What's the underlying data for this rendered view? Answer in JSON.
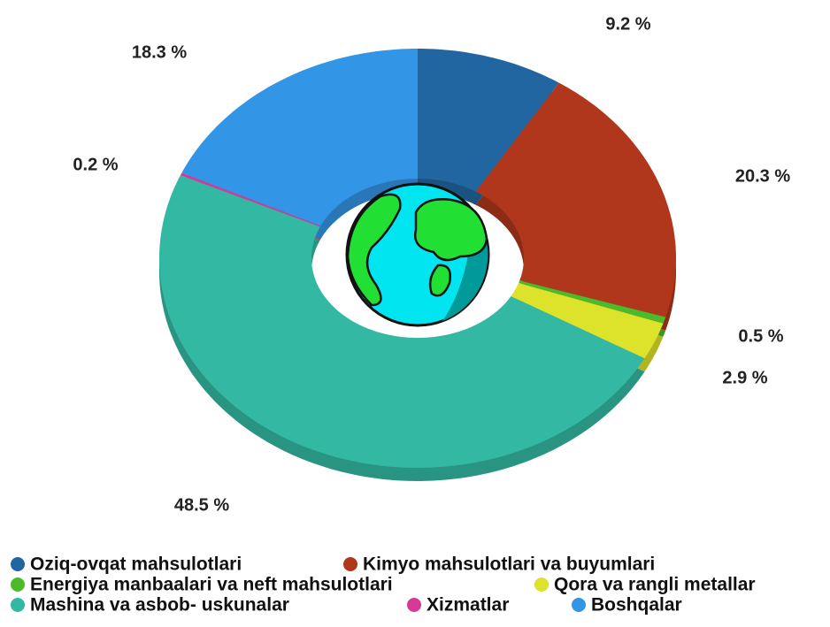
{
  "chart_data": {
    "type": "pie",
    "donut": true,
    "three_d": true,
    "categories": [
      "Oziq-ovqat mahsulotlari",
      "Kimyo mahsulotlari va buyumlari",
      "Energiya manbaalari va neft mahsulotlari",
      "Qora va rangli metallar",
      "Mashina va asbob- uskunalar",
      "Xizmatlar",
      "Boshqalar"
    ],
    "values": [
      9.2,
      20.3,
      0.5,
      2.9,
      48.5,
      0.2,
      18.3
    ],
    "value_labels": [
      "9.2 %",
      "20.3 %",
      "0.5 %",
      "2.9 %",
      "48.5 %",
      "0.2 %",
      "18.3 %"
    ],
    "colors": [
      "#2166a0",
      "#b0371c",
      "#4cbb2a",
      "#dde22a",
      "#33b9a3",
      "#d63a96",
      "#3395e6"
    ],
    "legend": "bottom"
  }
}
